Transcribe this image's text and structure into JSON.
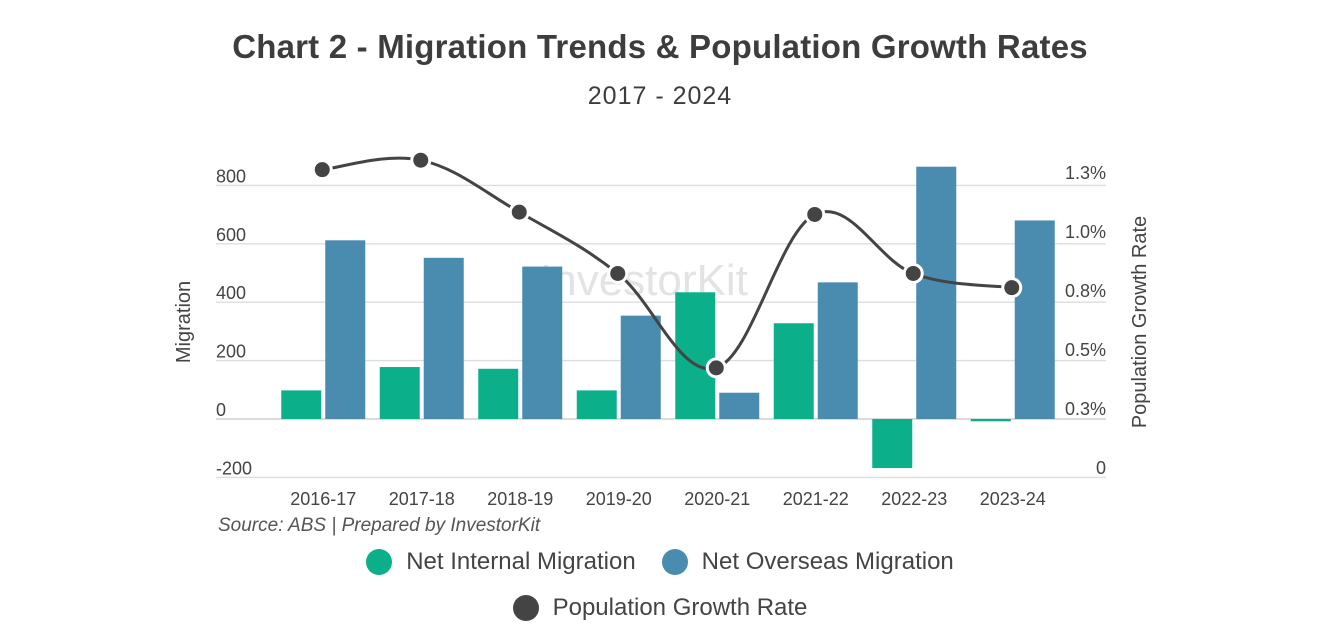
{
  "chart_data": {
    "type": "bar",
    "title": "Chart 2 - Migration Trends & Population Growth Rates",
    "subtitle": "2017 - 2024",
    "categories": [
      "2016-17",
      "2017-18",
      "2018-19",
      "2019-20",
      "2020-21",
      "2021-22",
      "2022-23",
      "2023-24"
    ],
    "series": [
      {
        "name": "Net Internal Migration",
        "type": "bar",
        "axis": "left",
        "color": "#0bb08a",
        "values": [
          98,
          178,
          172,
          98,
          434,
          328,
          -168,
          -8
        ]
      },
      {
        "name": "Net Overseas Migration",
        "type": "bar",
        "axis": "left",
        "color": "#4a8bb0",
        "values": [
          612,
          552,
          522,
          354,
          90,
          468,
          864,
          680
        ]
      },
      {
        "name": "Population Growth Rate",
        "type": "line",
        "axis": "right",
        "color": "#444444",
        "values": [
          1.26,
          1.3,
          1.08,
          0.82,
          0.42,
          1.07,
          0.82,
          0.76
        ]
      }
    ],
    "ylabel": "Migration",
    "y2label": "Population Growth Rate",
    "ylim": [
      -200,
      900
    ],
    "yticks": [
      -200,
      0,
      200,
      400,
      600,
      800
    ],
    "y2lim": [
      0,
      1.5
    ],
    "y2ticks": [
      0,
      0.25,
      0.5,
      0.75,
      1.0,
      1.25
    ],
    "y2ticklabels": [
      "0",
      "0.3%",
      "0.5%",
      "0.8%",
      "1.0%",
      "1.3%"
    ],
    "grid": true,
    "legend_position": "bottom",
    "source": "Source: ABS | Prepared by InvestorKit",
    "watermark": "InvestorKit"
  }
}
